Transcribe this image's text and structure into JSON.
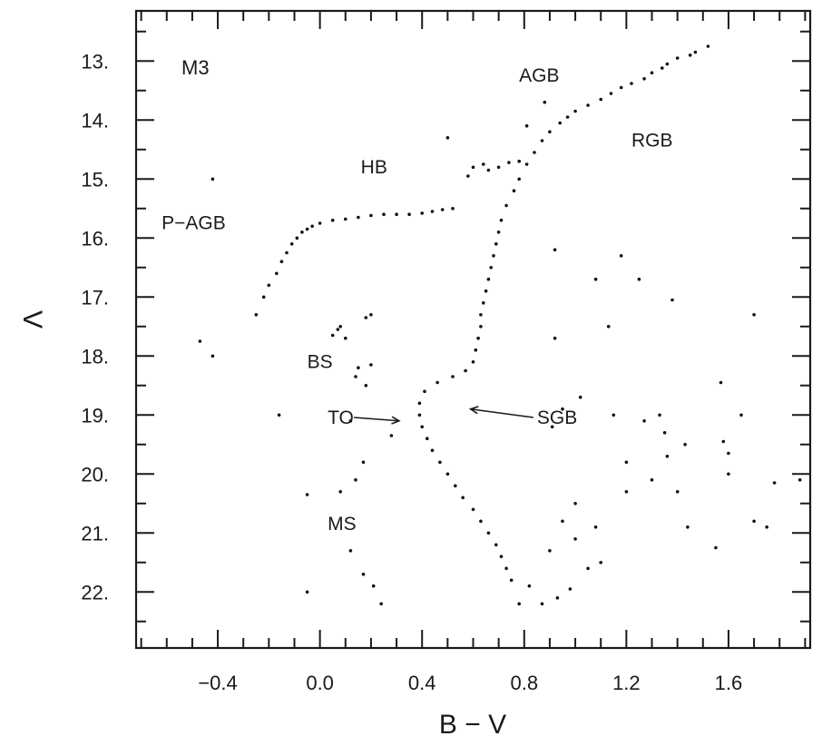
{
  "chart_data": {
    "type": "scatter",
    "title": "M3",
    "xlabel": "B − V",
    "ylabel": "V",
    "xlim": [
      -0.72,
      1.92
    ],
    "ylim": [
      12.15,
      22.95
    ],
    "y_inverted": true,
    "x_ticks": [
      {
        "value": -0.4,
        "label": "−0.4"
      },
      {
        "value": 0.0,
        "label": "0.0"
      },
      {
        "value": 0.4,
        "label": "0.4"
      },
      {
        "value": 0.8,
        "label": "0.8"
      },
      {
        "value": 1.2,
        "label": "1.2"
      },
      {
        "value": 1.6,
        "label": "1.6"
      }
    ],
    "y_ticks": [
      {
        "value": 13,
        "label": "13."
      },
      {
        "value": 14,
        "label": "14."
      },
      {
        "value": 15,
        "label": "15."
      },
      {
        "value": 16,
        "label": "16."
      },
      {
        "value": 17,
        "label": "17."
      },
      {
        "value": 18,
        "label": "18."
      },
      {
        "value": 19,
        "label": "19."
      },
      {
        "value": 20,
        "label": "20."
      },
      {
        "value": 21,
        "label": "21."
      },
      {
        "value": 22,
        "label": "22."
      }
    ],
    "x_minor_step": 0.1,
    "y_minor_step": 0.5,
    "grid": false,
    "legend": "none",
    "annotations": [
      {
        "text": "AGB",
        "x": 0.78,
        "y": 13.35
      },
      {
        "text": "RGB",
        "x": 1.22,
        "y": 14.45
      },
      {
        "text": "HB",
        "x": 0.16,
        "y": 14.9
      },
      {
        "text": "P−AGB",
        "x": -0.62,
        "y": 15.85
      },
      {
        "text": "BS",
        "x": -0.05,
        "y": 18.2
      },
      {
        "text": "TO",
        "x": 0.03,
        "y": 19.15,
        "arrow_to": {
          "x": 0.31,
          "y": 19.1
        }
      },
      {
        "text": "SGB",
        "x": 0.85,
        "y": 19.15,
        "arrow_to": {
          "x": 0.59,
          "y": 18.9
        }
      },
      {
        "text": "MS",
        "x": 0.03,
        "y": 20.95
      }
    ],
    "series": [
      {
        "points": [
          [
            1.52,
            12.75
          ],
          [
            1.47,
            12.85
          ],
          [
            1.45,
            12.9
          ],
          [
            1.4,
            12.95
          ],
          [
            1.36,
            13.05
          ],
          [
            1.34,
            13.12
          ],
          [
            1.3,
            13.2
          ],
          [
            1.27,
            13.3
          ],
          [
            1.22,
            13.38
          ],
          [
            1.18,
            13.45
          ],
          [
            1.14,
            13.55
          ],
          [
            1.1,
            13.65
          ],
          [
            1.05,
            13.75
          ],
          [
            1.0,
            13.85
          ],
          [
            0.97,
            13.95
          ],
          [
            0.94,
            14.05
          ],
          [
            0.9,
            14.2
          ],
          [
            0.87,
            14.35
          ],
          [
            0.84,
            14.55
          ],
          [
            0.81,
            14.75
          ],
          [
            0.78,
            15.0
          ],
          [
            0.76,
            15.2
          ],
          [
            0.73,
            15.45
          ],
          [
            0.71,
            15.7
          ],
          [
            0.7,
            15.9
          ],
          [
            0.69,
            16.1
          ],
          [
            0.68,
            16.3
          ],
          [
            0.67,
            16.5
          ],
          [
            0.66,
            16.7
          ],
          [
            0.65,
            16.9
          ],
          [
            0.64,
            17.1
          ],
          [
            0.63,
            17.3
          ],
          [
            0.63,
            17.5
          ],
          [
            0.62,
            17.7
          ],
          [
            0.61,
            17.9
          ],
          [
            0.6,
            18.1
          ],
          [
            0.57,
            18.25
          ],
          [
            0.52,
            18.35
          ],
          [
            0.46,
            18.45
          ],
          [
            0.41,
            18.6
          ],
          [
            0.39,
            18.8
          ],
          [
            0.39,
            19.0
          ],
          [
            0.4,
            19.2
          ],
          [
            0.42,
            19.4
          ],
          [
            0.44,
            19.6
          ],
          [
            0.47,
            19.8
          ],
          [
            0.5,
            20.0
          ],
          [
            0.53,
            20.2
          ],
          [
            0.56,
            20.4
          ],
          [
            0.6,
            20.6
          ],
          [
            0.63,
            20.8
          ],
          [
            0.66,
            21.0
          ],
          [
            0.69,
            21.2
          ],
          [
            0.71,
            21.4
          ],
          [
            0.73,
            21.6
          ],
          [
            0.75,
            21.8
          ],
          [
            0.52,
            15.5
          ],
          [
            0.48,
            15.52
          ],
          [
            0.44,
            15.55
          ],
          [
            0.4,
            15.58
          ],
          [
            0.35,
            15.6
          ],
          [
            0.3,
            15.6
          ],
          [
            0.25,
            15.6
          ],
          [
            0.2,
            15.62
          ],
          [
            0.15,
            15.65
          ],
          [
            0.1,
            15.68
          ],
          [
            0.05,
            15.7
          ],
          [
            0.0,
            15.75
          ],
          [
            -0.03,
            15.8
          ],
          [
            -0.05,
            15.85
          ],
          [
            -0.07,
            15.9
          ],
          [
            -0.09,
            16.0
          ],
          [
            -0.11,
            16.1
          ],
          [
            -0.13,
            16.25
          ],
          [
            -0.15,
            16.4
          ],
          [
            -0.17,
            16.6
          ],
          [
            -0.2,
            16.8
          ],
          [
            -0.22,
            17.0
          ],
          [
            -0.25,
            17.3
          ],
          [
            0.6,
            14.8
          ],
          [
            0.64,
            14.75
          ],
          [
            0.7,
            14.8
          ],
          [
            0.74,
            14.72
          ],
          [
            0.78,
            14.7
          ],
          [
            0.58,
            14.95
          ],
          [
            0.66,
            14.85
          ],
          [
            -0.42,
            15.0
          ],
          [
            -0.47,
            17.75
          ],
          [
            -0.42,
            18.0
          ],
          [
            -0.16,
            19.0
          ],
          [
            -0.05,
            20.35
          ],
          [
            -0.05,
            22.0
          ],
          [
            0.08,
            17.5
          ],
          [
            0.1,
            17.7
          ],
          [
            0.05,
            17.65
          ],
          [
            0.07,
            17.55
          ],
          [
            0.2,
            17.3
          ],
          [
            0.18,
            17.35
          ],
          [
            0.15,
            18.2
          ],
          [
            0.14,
            18.35
          ],
          [
            0.2,
            18.15
          ],
          [
            0.18,
            18.5
          ],
          [
            0.12,
            19.1
          ],
          [
            0.28,
            19.35
          ],
          [
            0.17,
            19.8
          ],
          [
            0.14,
            20.1
          ],
          [
            0.08,
            20.3
          ],
          [
            0.12,
            21.3
          ],
          [
            0.17,
            21.7
          ],
          [
            0.21,
            21.9
          ],
          [
            0.24,
            22.2
          ],
          [
            0.5,
            14.3
          ],
          [
            0.88,
            13.7
          ],
          [
            0.81,
            14.1
          ],
          [
            0.92,
            16.2
          ],
          [
            1.08,
            16.7
          ],
          [
            1.18,
            16.3
          ],
          [
            1.25,
            16.7
          ],
          [
            1.38,
            17.05
          ],
          [
            1.7,
            17.3
          ],
          [
            1.13,
            17.5
          ],
          [
            0.92,
            17.7
          ],
          [
            1.02,
            18.7
          ],
          [
            0.95,
            18.9
          ],
          [
            0.91,
            19.2
          ],
          [
            1.15,
            19.0
          ],
          [
            1.27,
            19.1
          ],
          [
            1.33,
            19.0
          ],
          [
            1.35,
            19.3
          ],
          [
            1.36,
            19.7
          ],
          [
            1.43,
            19.5
          ],
          [
            1.58,
            19.45
          ],
          [
            1.6,
            19.65
          ],
          [
            1.6,
            20.0
          ],
          [
            1.65,
            19.0
          ],
          [
            1.57,
            18.45
          ],
          [
            1.2,
            19.8
          ],
          [
            1.2,
            20.3
          ],
          [
            1.0,
            20.5
          ],
          [
            1.0,
            21.1
          ],
          [
            1.08,
            20.9
          ],
          [
            1.3,
            20.1
          ],
          [
            1.4,
            20.3
          ],
          [
            1.44,
            20.9
          ],
          [
            1.55,
            21.25
          ],
          [
            1.7,
            20.8
          ],
          [
            1.75,
            20.9
          ],
          [
            1.78,
            20.15
          ],
          [
            1.88,
            20.1
          ],
          [
            1.1,
            21.5
          ],
          [
            1.05,
            21.6
          ],
          [
            0.98,
            21.95
          ],
          [
            0.93,
            22.1
          ],
          [
            0.87,
            22.2
          ],
          [
            0.82,
            21.9
          ],
          [
            0.78,
            22.2
          ],
          [
            0.9,
            21.3
          ],
          [
            0.95,
            20.8
          ]
        ]
      }
    ]
  }
}
